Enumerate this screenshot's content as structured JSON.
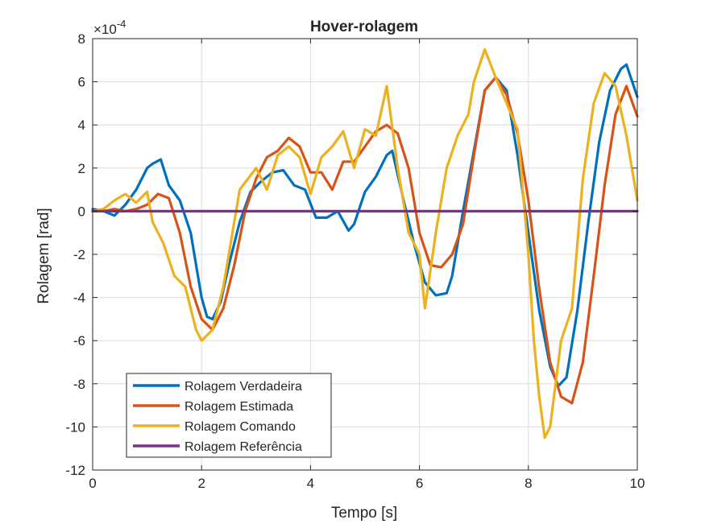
{
  "chart_data": {
    "type": "line",
    "title": "Hover-rolagem",
    "xlabel": "Tempo [s]",
    "ylabel": "Rolagem [rad]",
    "y_exponent_label": "×10",
    "y_exponent_power": "-4",
    "y_scale_note": "values in units of 1e-4 rad",
    "xlim": [
      0,
      10
    ],
    "ylim": [
      -12,
      8
    ],
    "xticks": [
      0,
      2,
      4,
      6,
      8,
      10
    ],
    "yticks": [
      -12,
      -10,
      -8,
      -6,
      -4,
      -2,
      0,
      2,
      4,
      6,
      8
    ],
    "grid": true,
    "legend_position": "bottom-left",
    "series": [
      {
        "name": "Rolagem Verdadeira",
        "color": "#0072BD",
        "x": [
          0,
          0.2,
          0.4,
          0.6,
          0.8,
          1.0,
          1.1,
          1.25,
          1.4,
          1.6,
          1.8,
          1.9,
          2.0,
          2.1,
          2.2,
          2.35,
          2.5,
          2.7,
          2.9,
          3.1,
          3.3,
          3.5,
          3.7,
          3.9,
          4.1,
          4.3,
          4.5,
          4.7,
          4.8,
          5.0,
          5.2,
          5.4,
          5.5,
          5.7,
          5.9,
          6.1,
          6.3,
          6.5,
          6.6,
          6.8,
          7.0,
          7.2,
          7.4,
          7.6,
          7.8,
          8.0,
          8.2,
          8.4,
          8.55,
          8.7,
          8.9,
          9.1,
          9.3,
          9.5,
          9.7,
          9.8,
          10.0
        ],
        "y": [
          0.1,
          0.0,
          -0.2,
          0.3,
          1.0,
          2.0,
          2.2,
          2.4,
          1.2,
          0.5,
          -1.0,
          -2.5,
          -4.0,
          -4.9,
          -5.0,
          -4.2,
          -2.5,
          -0.5,
          0.9,
          1.4,
          1.8,
          1.9,
          1.2,
          1.0,
          -0.3,
          -0.3,
          0.0,
          -0.9,
          -0.6,
          0.9,
          1.6,
          2.6,
          2.8,
          0.6,
          -1.5,
          -3.3,
          -3.9,
          -3.8,
          -3.0,
          0.0,
          2.8,
          5.6,
          6.2,
          5.6,
          2.6,
          -1.0,
          -4.6,
          -7.2,
          -8.1,
          -7.7,
          -4.6,
          -0.5,
          3.2,
          5.6,
          6.6,
          6.8,
          5.3
        ]
      },
      {
        "name": "Rolagem Estimada",
        "color": "#D95319",
        "x": [
          0,
          0.2,
          0.4,
          0.6,
          0.8,
          1.0,
          1.2,
          1.4,
          1.6,
          1.8,
          2.0,
          2.2,
          2.4,
          2.6,
          2.8,
          3.0,
          3.2,
          3.4,
          3.6,
          3.8,
          4.0,
          4.2,
          4.4,
          4.6,
          4.8,
          5.0,
          5.2,
          5.4,
          5.6,
          5.8,
          6.0,
          6.2,
          6.4,
          6.6,
          6.8,
          7.0,
          7.2,
          7.4,
          7.6,
          7.8,
          8.0,
          8.2,
          8.4,
          8.6,
          8.8,
          9.0,
          9.2,
          9.4,
          9.6,
          9.8,
          10.0
        ],
        "y": [
          0.0,
          0.0,
          0.1,
          0.0,
          0.1,
          0.3,
          0.8,
          0.6,
          -1.0,
          -3.5,
          -5.0,
          -5.5,
          -4.5,
          -2.5,
          0.0,
          1.5,
          2.5,
          2.8,
          3.4,
          3.0,
          1.8,
          1.8,
          1.0,
          2.3,
          2.3,
          3.0,
          3.7,
          4.0,
          3.6,
          2.0,
          -1.0,
          -2.5,
          -2.6,
          -2.0,
          -0.6,
          2.6,
          5.6,
          6.2,
          5.4,
          3.6,
          0.5,
          -3.6,
          -7.0,
          -8.6,
          -8.9,
          -7.0,
          -3.0,
          1.2,
          4.5,
          5.8,
          4.4
        ]
      },
      {
        "name": "Rolagem Comando",
        "color": "#EDB120",
        "x": [
          0,
          0.2,
          0.4,
          0.6,
          0.8,
          1.0,
          1.1,
          1.3,
          1.5,
          1.7,
          1.9,
          2.0,
          2.2,
          2.4,
          2.5,
          2.7,
          3.0,
          3.2,
          3.4,
          3.6,
          3.8,
          4.0,
          4.2,
          4.4,
          4.6,
          4.8,
          5.0,
          5.2,
          5.4,
          5.6,
          5.8,
          6.0,
          6.1,
          6.3,
          6.5,
          6.7,
          6.9,
          7.0,
          7.2,
          7.4,
          7.6,
          7.8,
          8.0,
          8.1,
          8.2,
          8.3,
          8.4,
          8.6,
          8.8,
          9.0,
          9.2,
          9.4,
          9.6,
          9.8,
          10.0
        ],
        "y": [
          0.0,
          0.1,
          0.5,
          0.8,
          0.4,
          0.9,
          -0.5,
          -1.5,
          -3.0,
          -3.5,
          -5.5,
          -6.0,
          -5.5,
          -3.5,
          -2.0,
          1.0,
          2.0,
          1.0,
          2.6,
          3.0,
          2.5,
          0.8,
          2.5,
          3.0,
          3.7,
          2.0,
          3.8,
          3.5,
          5.8,
          2.0,
          -1.0,
          -2.0,
          -4.5,
          -1.0,
          2.0,
          3.5,
          4.5,
          6.0,
          7.5,
          6.2,
          5.0,
          3.8,
          -2.0,
          -6.0,
          -8.6,
          -10.5,
          -10.0,
          -6.0,
          -4.5,
          1.5,
          5.0,
          6.4,
          5.8,
          3.5,
          0.5
        ]
      },
      {
        "name": "Rolagem Referência",
        "color": "#7E2F8E",
        "x": [
          0,
          10
        ],
        "y": [
          0,
          0
        ]
      }
    ]
  }
}
